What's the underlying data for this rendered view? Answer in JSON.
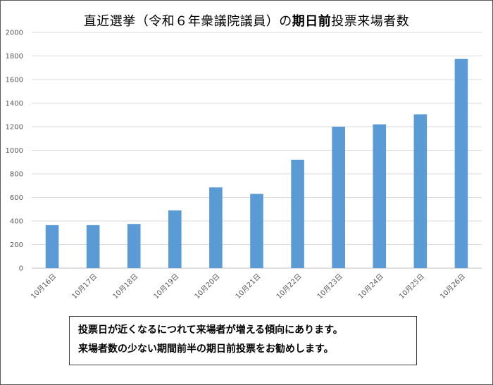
{
  "title": {
    "prefix": "直近選挙（令和６年衆議院議員）の",
    "bold": "期日前",
    "suffix": "投票来場者数"
  },
  "note": {
    "line1": "投票日が近くなるにつれて来場者が増える傾向にあります。",
    "line2": "来場者数の少ない期間前半の期日前投票をお勧めします。"
  },
  "colors": {
    "bar": "#5b9bd5",
    "grid": "#d9d9d9",
    "text": "#595959"
  },
  "chart_data": {
    "type": "bar",
    "title": "直近選挙（令和６年衆議院議員）の期日前投票来場者数",
    "xlabel": "",
    "ylabel": "",
    "categories": [
      "10月16日",
      "10月17日",
      "10月18日",
      "10月19日",
      "10月20日",
      "10月21日",
      "10月22日",
      "10月23日",
      "10月24日",
      "10月25日",
      "10月26日"
    ],
    "values": [
      365,
      365,
      375,
      490,
      685,
      630,
      920,
      1200,
      1220,
      1305,
      1775
    ],
    "ylim": [
      0,
      2000
    ],
    "yticks": [
      0,
      200,
      400,
      600,
      800,
      1000,
      1200,
      1400,
      1600,
      1800,
      2000
    ],
    "grid": true,
    "legend": "none"
  }
}
